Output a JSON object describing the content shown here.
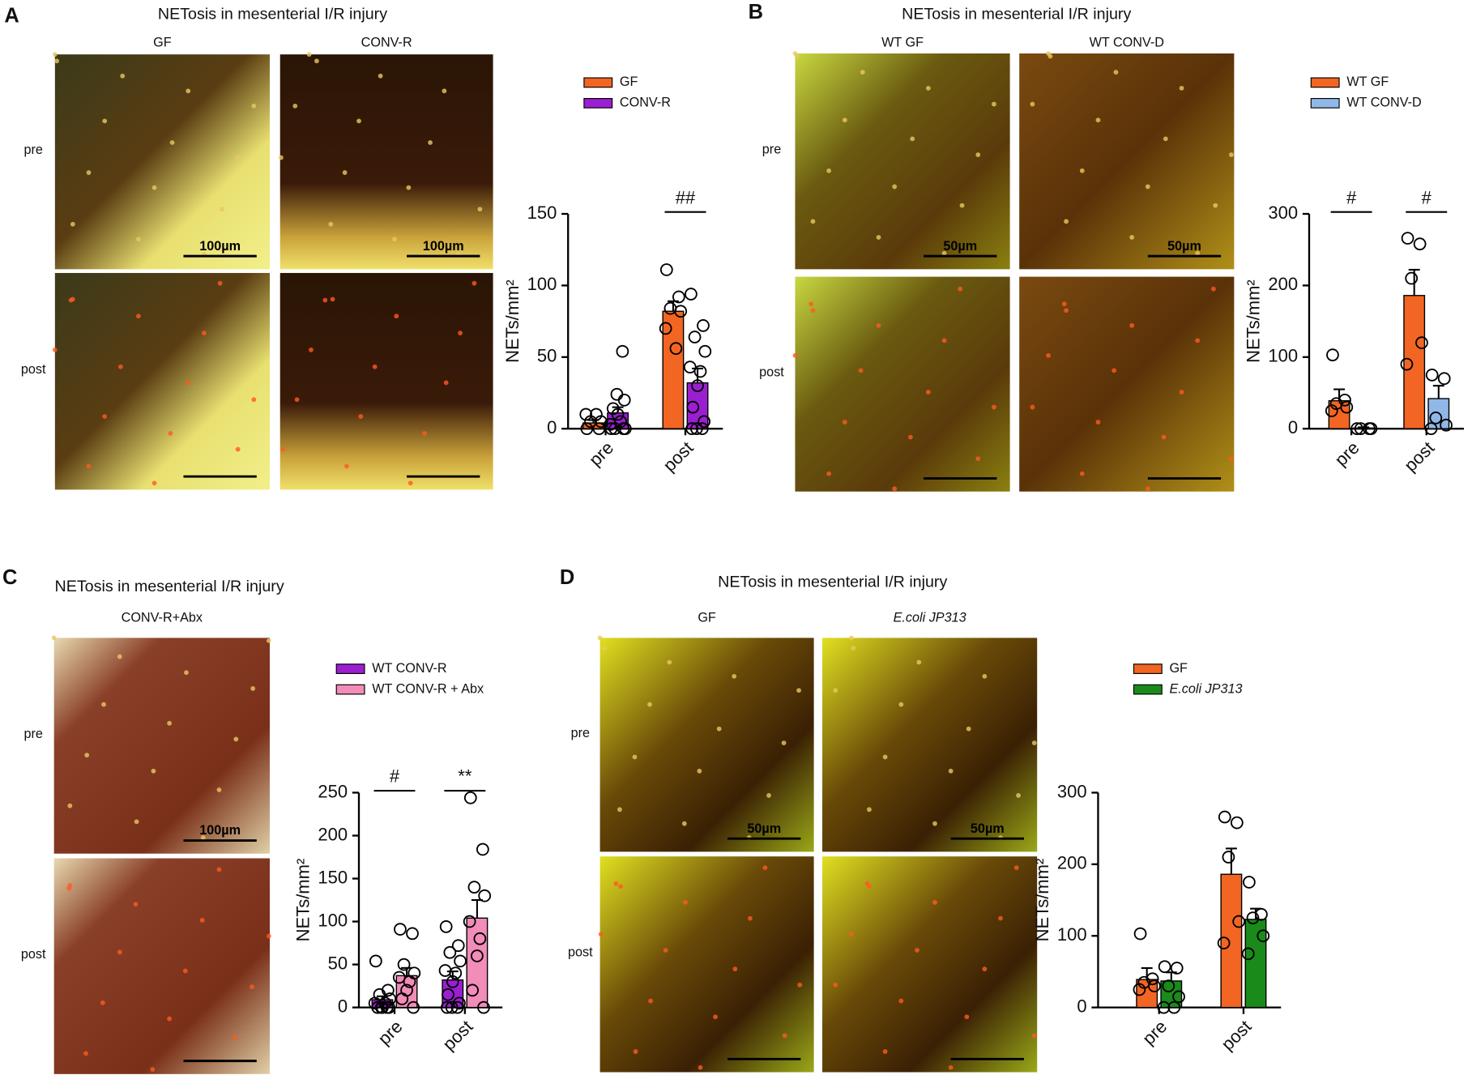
{
  "chart_data": [
    {
      "type": "bar",
      "panel": "A",
      "title": "NETosis in mesenterial I/R injury",
      "image_columns": [
        "GF",
        "CONV-R"
      ],
      "image_rows": [
        "pre",
        "post"
      ],
      "scale_bar": "100µm",
      "ylabel": "NETs/mm²",
      "categories": [
        "pre",
        "post"
      ],
      "ylim": [
        0,
        150
      ],
      "yticks": [
        0,
        50,
        100,
        150
      ],
      "annotations": [
        null,
        "##"
      ],
      "series": [
        {
          "name": "GF",
          "color": "#f26522",
          "values": [
            4,
            82
          ],
          "errors": [
            2,
            7
          ],
          "points": [
            [
              0,
              0,
              5,
              5,
              10,
              10
            ],
            [
              111,
              92,
              84,
              82,
              70,
              56
            ]
          ]
        },
        {
          "name": "CONV-R",
          "color": "#9b1fd1",
          "values": [
            11,
            32
          ],
          "errors": [
            4,
            10
          ],
          "points": [
            [
              0,
              0,
              0,
              0,
              3,
              5,
              10,
              14,
              20,
              24,
              54
            ],
            [
              94,
              72,
              64,
              54,
              43,
              40,
              30,
              15,
              5,
              0,
              0,
              0
            ]
          ]
        }
      ]
    },
    {
      "type": "bar",
      "panel": "B",
      "title": "NETosis in mesenterial I/R injury",
      "image_columns": [
        "WT GF",
        "WT CONV-D"
      ],
      "image_rows": [
        "pre",
        "post"
      ],
      "scale_bar": "50µm",
      "ylabel": "NETs/mm²",
      "categories": [
        "pre",
        "post"
      ],
      "ylim": [
        0,
        300
      ],
      "yticks": [
        0,
        100,
        200,
        300
      ],
      "annotations": [
        "#",
        "#"
      ],
      "series": [
        {
          "name": "WT GF",
          "color": "#f26522",
          "values": [
            39,
            186
          ],
          "errors": [
            16,
            36
          ],
          "points": [
            [
              103,
              40,
              35,
              30,
              25
            ],
            [
              266,
              258,
              210,
              120,
              90
            ]
          ]
        },
        {
          "name": "WT CONV-D",
          "color": "#8fb8e8",
          "values": [
            1,
            42
          ],
          "errors": [
            1,
            18
          ],
          "points": [
            [
              0,
              0,
              0,
              0
            ],
            [
              75,
              70,
              15,
              5,
              0
            ]
          ]
        }
      ]
    },
    {
      "type": "bar",
      "panel": "C",
      "title": "NETosis in mesenterial I/R injury",
      "image_columns": [
        "CONV-R+Abx"
      ],
      "image_rows": [
        "pre",
        "post"
      ],
      "scale_bar": "100µm",
      "ylabel": "NETs/mm²",
      "categories": [
        "pre",
        "post"
      ],
      "ylim": [
        0,
        250
      ],
      "yticks": [
        0,
        50,
        100,
        150,
        200,
        250
      ],
      "annotations": [
        "#",
        "**"
      ],
      "series": [
        {
          "name": "WT CONV-R",
          "color": "#9b1fd1",
          "values": [
            9,
            32
          ],
          "errors": [
            4,
            10
          ],
          "points": [
            [
              54,
              20,
              15,
              10,
              5,
              5,
              0,
              0,
              0,
              0,
              0
            ],
            [
              94,
              72,
              64,
              54,
              43,
              40,
              30,
              15,
              5,
              0,
              0,
              0
            ]
          ]
        },
        {
          "name": "WT CONV-R + Abx",
          "color": "#f28cb8",
          "values": [
            37,
            104
          ],
          "errors": [
            9,
            21
          ],
          "points": [
            [
              91,
              86,
              50,
              40,
              35,
              30,
              20,
              10,
              0
            ],
            [
              244,
              184,
              140,
              130,
              100,
              80,
              60,
              20,
              0
            ]
          ]
        }
      ]
    },
    {
      "type": "bar",
      "panel": "D",
      "title": "NETosis in mesenterial I/R injury",
      "image_columns": [
        "GF",
        "E.coli JP313"
      ],
      "image_rows": [
        "pre",
        "post"
      ],
      "scale_bar": "50µm",
      "ylabel": "NETs/mm²",
      "categories": [
        "pre",
        "post"
      ],
      "ylim": [
        0,
        300
      ],
      "yticks": [
        0,
        100,
        200,
        300
      ],
      "annotations": [
        null,
        null
      ],
      "series": [
        {
          "name": "GF",
          "color": "#f26522",
          "values": [
            39,
            186
          ],
          "errors": [
            16,
            36
          ],
          "points": [
            [
              103,
              40,
              35,
              30,
              25
            ],
            [
              266,
              258,
              210,
              120,
              90
            ]
          ]
        },
        {
          "name": "E.coli JP313",
          "color": "#1a8a1a",
          "values": [
            37,
            123
          ],
          "errors": [
            12,
            15
          ],
          "points": [
            [
              57,
              55,
              30,
              15,
              0,
              0
            ],
            [
              175,
              130,
              125,
              100,
              75
            ]
          ]
        }
      ]
    }
  ]
}
